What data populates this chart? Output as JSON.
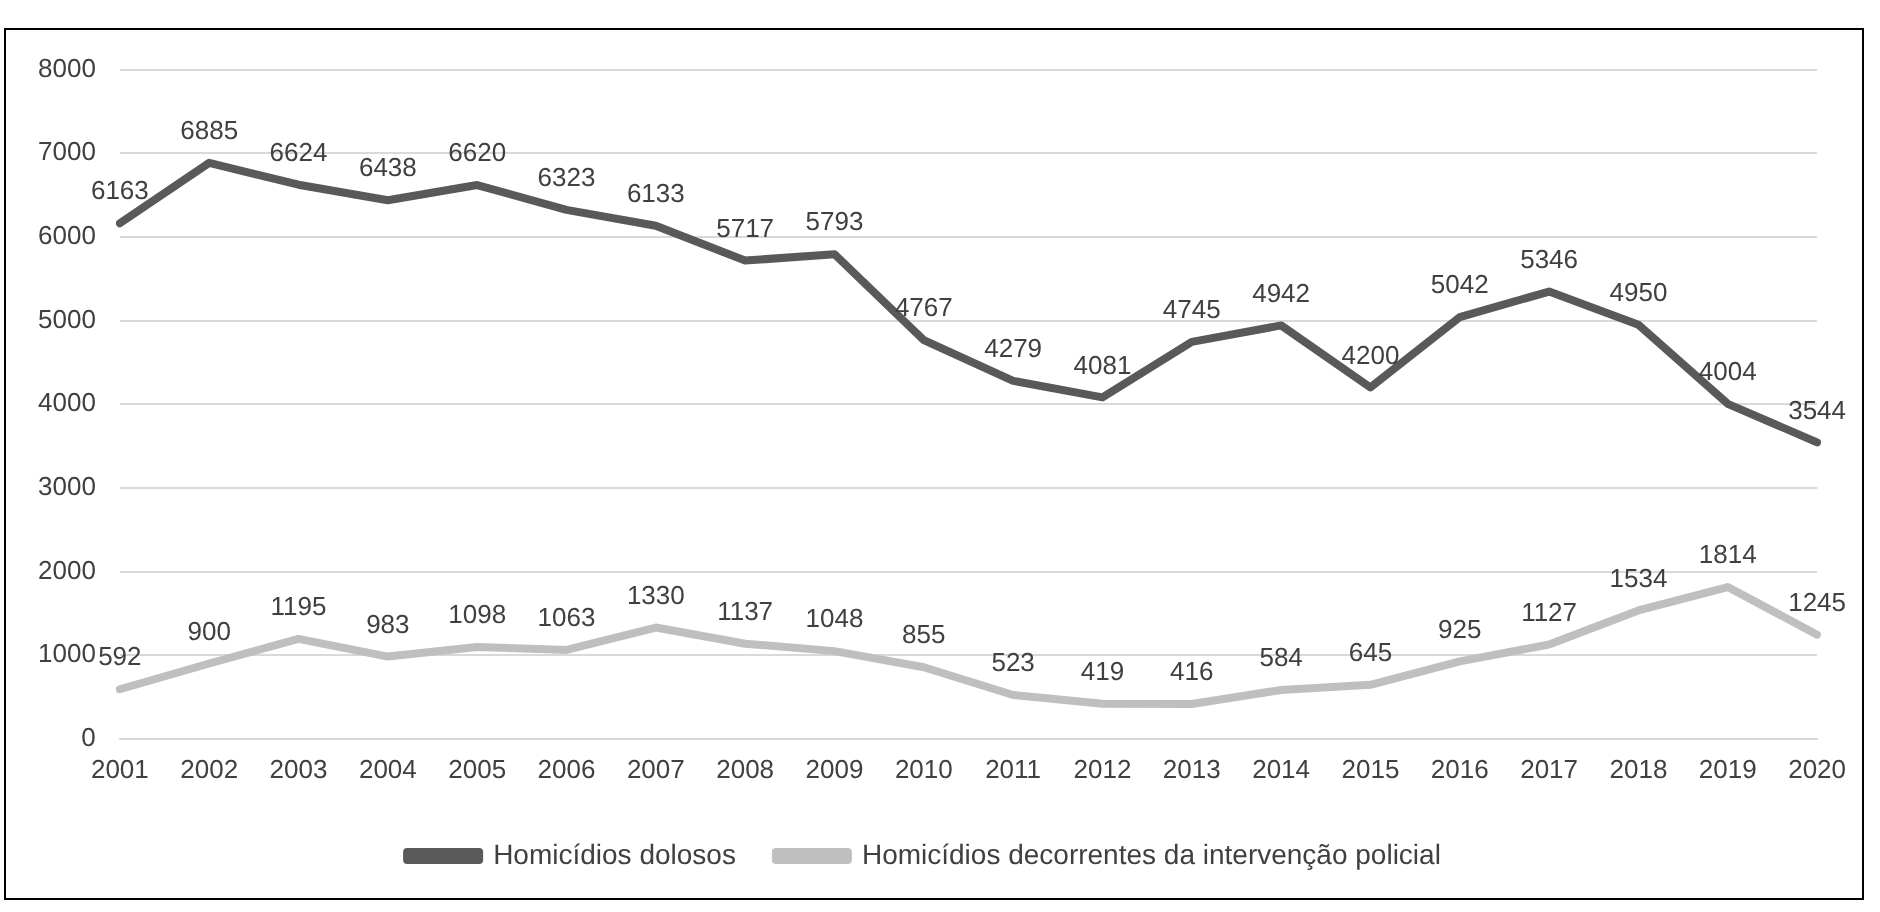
{
  "chart_data": {
    "type": "line",
    "categories": [
      "2001",
      "2002",
      "2003",
      "2004",
      "2005",
      "2006",
      "2007",
      "2008",
      "2009",
      "2010",
      "2011",
      "2012",
      "2013",
      "2014",
      "2015",
      "2016",
      "2017",
      "2018",
      "2019",
      "2020"
    ],
    "series": [
      {
        "name": "Homicídios dolosos",
        "color": "#595959",
        "values": [
          6163,
          6885,
          6624,
          6438,
          6620,
          6323,
          6133,
          5717,
          5793,
          4767,
          4279,
          4081,
          4745,
          4942,
          4200,
          5042,
          5346,
          4950,
          4004,
          3544
        ]
      },
      {
        "name": "Homicídios decorrentes da intervenção policial",
        "color": "#bfbfbf",
        "values": [
          592,
          900,
          1195,
          983,
          1098,
          1063,
          1330,
          1137,
          1048,
          855,
          523,
          419,
          416,
          584,
          645,
          925,
          1127,
          1534,
          1814,
          1245
        ]
      }
    ],
    "ylim": [
      0,
      8000
    ],
    "yticks": [
      0,
      1000,
      2000,
      3000,
      4000,
      5000,
      6000,
      7000,
      8000
    ],
    "grid": "y",
    "legend": "bottom",
    "data_labels": true,
    "marker": "none"
  }
}
